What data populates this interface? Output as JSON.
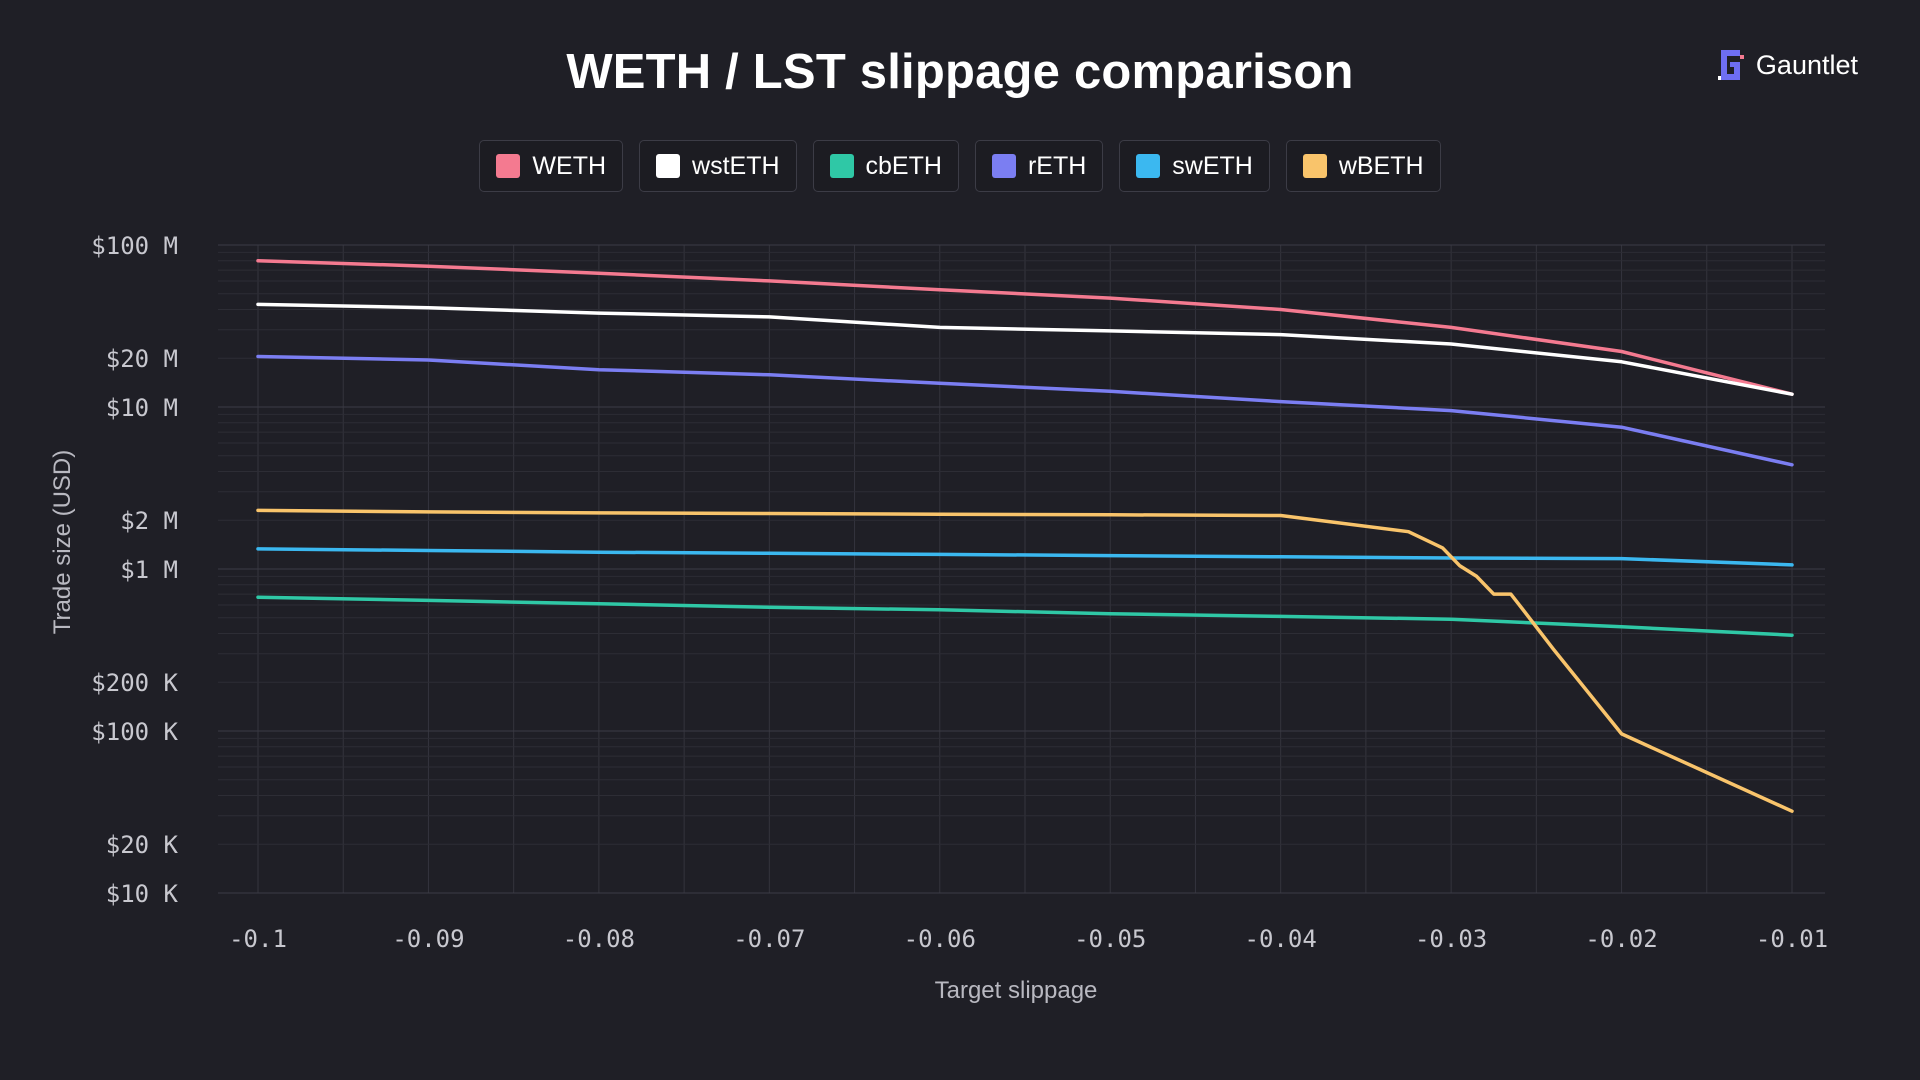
{
  "brand": {
    "name": "Gauntlet",
    "icon": "gauntlet-logo-icon"
  },
  "chart_data": {
    "type": "line",
    "title": "WETH / LST slippage comparison",
    "xlabel": "Target slippage",
    "ylabel": "Trade size (USD)",
    "yscale": "log",
    "xlim": [
      -0.1,
      -0.01
    ],
    "ylim": [
      10000,
      100000000
    ],
    "grid": true,
    "legend_position": "top-center",
    "x_ticks": [
      {
        "value": -0.1,
        "label": "-0.1"
      },
      {
        "value": -0.09,
        "label": "-0.09"
      },
      {
        "value": -0.08,
        "label": "-0.08"
      },
      {
        "value": -0.07,
        "label": "-0.07"
      },
      {
        "value": -0.06,
        "label": "-0.06"
      },
      {
        "value": -0.05,
        "label": "-0.05"
      },
      {
        "value": -0.04,
        "label": "-0.04"
      },
      {
        "value": -0.03,
        "label": "-0.03"
      },
      {
        "value": -0.02,
        "label": "-0.02"
      },
      {
        "value": -0.01,
        "label": "-0.01"
      }
    ],
    "y_ticks": [
      {
        "value": 100000000,
        "label": "$100 M"
      },
      {
        "value": 20000000,
        "label": "$20 M"
      },
      {
        "value": 10000000,
        "label": "$10 M"
      },
      {
        "value": 2000000,
        "label": "$2 M"
      },
      {
        "value": 1000000,
        "label": "$1 M"
      },
      {
        "value": 200000,
        "label": "$200 K"
      },
      {
        "value": 100000,
        "label": "$100 K"
      },
      {
        "value": 20000,
        "label": "$20 K"
      },
      {
        "value": 10000,
        "label": "$10 K"
      }
    ],
    "series": [
      {
        "name": "WETH",
        "color": "#f47a90",
        "x": [
          -0.1,
          -0.09,
          -0.08,
          -0.07,
          -0.06,
          -0.05,
          -0.04,
          -0.03,
          -0.02,
          -0.01
        ],
        "y": [
          80000000,
          74000000,
          67000000,
          60000000,
          53000000,
          47000000,
          40000000,
          31000000,
          22000000,
          12000000
        ]
      },
      {
        "name": "wstETH",
        "color": "#ffffff",
        "x": [
          -0.1,
          -0.09,
          -0.08,
          -0.07,
          -0.06,
          -0.05,
          -0.04,
          -0.03,
          -0.02,
          -0.01
        ],
        "y": [
          43000000,
          41000000,
          38000000,
          36000000,
          31000000,
          29500000,
          28000000,
          24500000,
          19000000,
          12000000
        ]
      },
      {
        "name": "rETH",
        "color": "#7b7ef2",
        "x": [
          -0.1,
          -0.09,
          -0.08,
          -0.07,
          -0.06,
          -0.05,
          -0.04,
          -0.03,
          -0.02,
          -0.01
        ],
        "y": [
          20500000,
          19500000,
          17000000,
          15800000,
          14000000,
          12500000,
          10800000,
          9500000,
          7500000,
          4400000
        ]
      },
      {
        "name": "swETH",
        "color": "#3bb8f0",
        "x": [
          -0.1,
          -0.09,
          -0.08,
          -0.07,
          -0.06,
          -0.05,
          -0.04,
          -0.03,
          -0.02,
          -0.01
        ],
        "y": [
          1330000,
          1300000,
          1270000,
          1250000,
          1230000,
          1210000,
          1190000,
          1170000,
          1160000,
          1060000
        ]
      },
      {
        "name": "cbETH",
        "color": "#2fc8a6",
        "x": [
          -0.1,
          -0.09,
          -0.08,
          -0.07,
          -0.06,
          -0.05,
          -0.04,
          -0.03,
          -0.02,
          -0.01
        ],
        "y": [
          670000,
          640000,
          610000,
          580000,
          560000,
          530000,
          510000,
          490000,
          440000,
          390000
        ]
      },
      {
        "name": "wBETH",
        "color": "#f9c46b",
        "x": [
          -0.1,
          -0.09,
          -0.08,
          -0.07,
          -0.06,
          -0.05,
          -0.04,
          -0.0325,
          -0.0305,
          -0.0295,
          -0.0285,
          -0.0275,
          -0.0265,
          -0.026,
          -0.024,
          -0.02,
          -0.01
        ],
        "y": [
          2300000,
          2250000,
          2220000,
          2200000,
          2180000,
          2160000,
          2140000,
          1700000,
          1350000,
          1050000,
          900000,
          700000,
          700000,
          600000,
          320000,
          96000,
          32000
        ]
      }
    ]
  },
  "legend": [
    {
      "label": "WETH",
      "color": "#f47a90"
    },
    {
      "label": "wstETH",
      "color": "#ffffff"
    },
    {
      "label": "cbETH",
      "color": "#2fc8a6"
    },
    {
      "label": "rETH",
      "color": "#7b7ef2"
    },
    {
      "label": "swETH",
      "color": "#3bb8f0"
    },
    {
      "label": "wBETH",
      "color": "#f9c46b"
    }
  ]
}
